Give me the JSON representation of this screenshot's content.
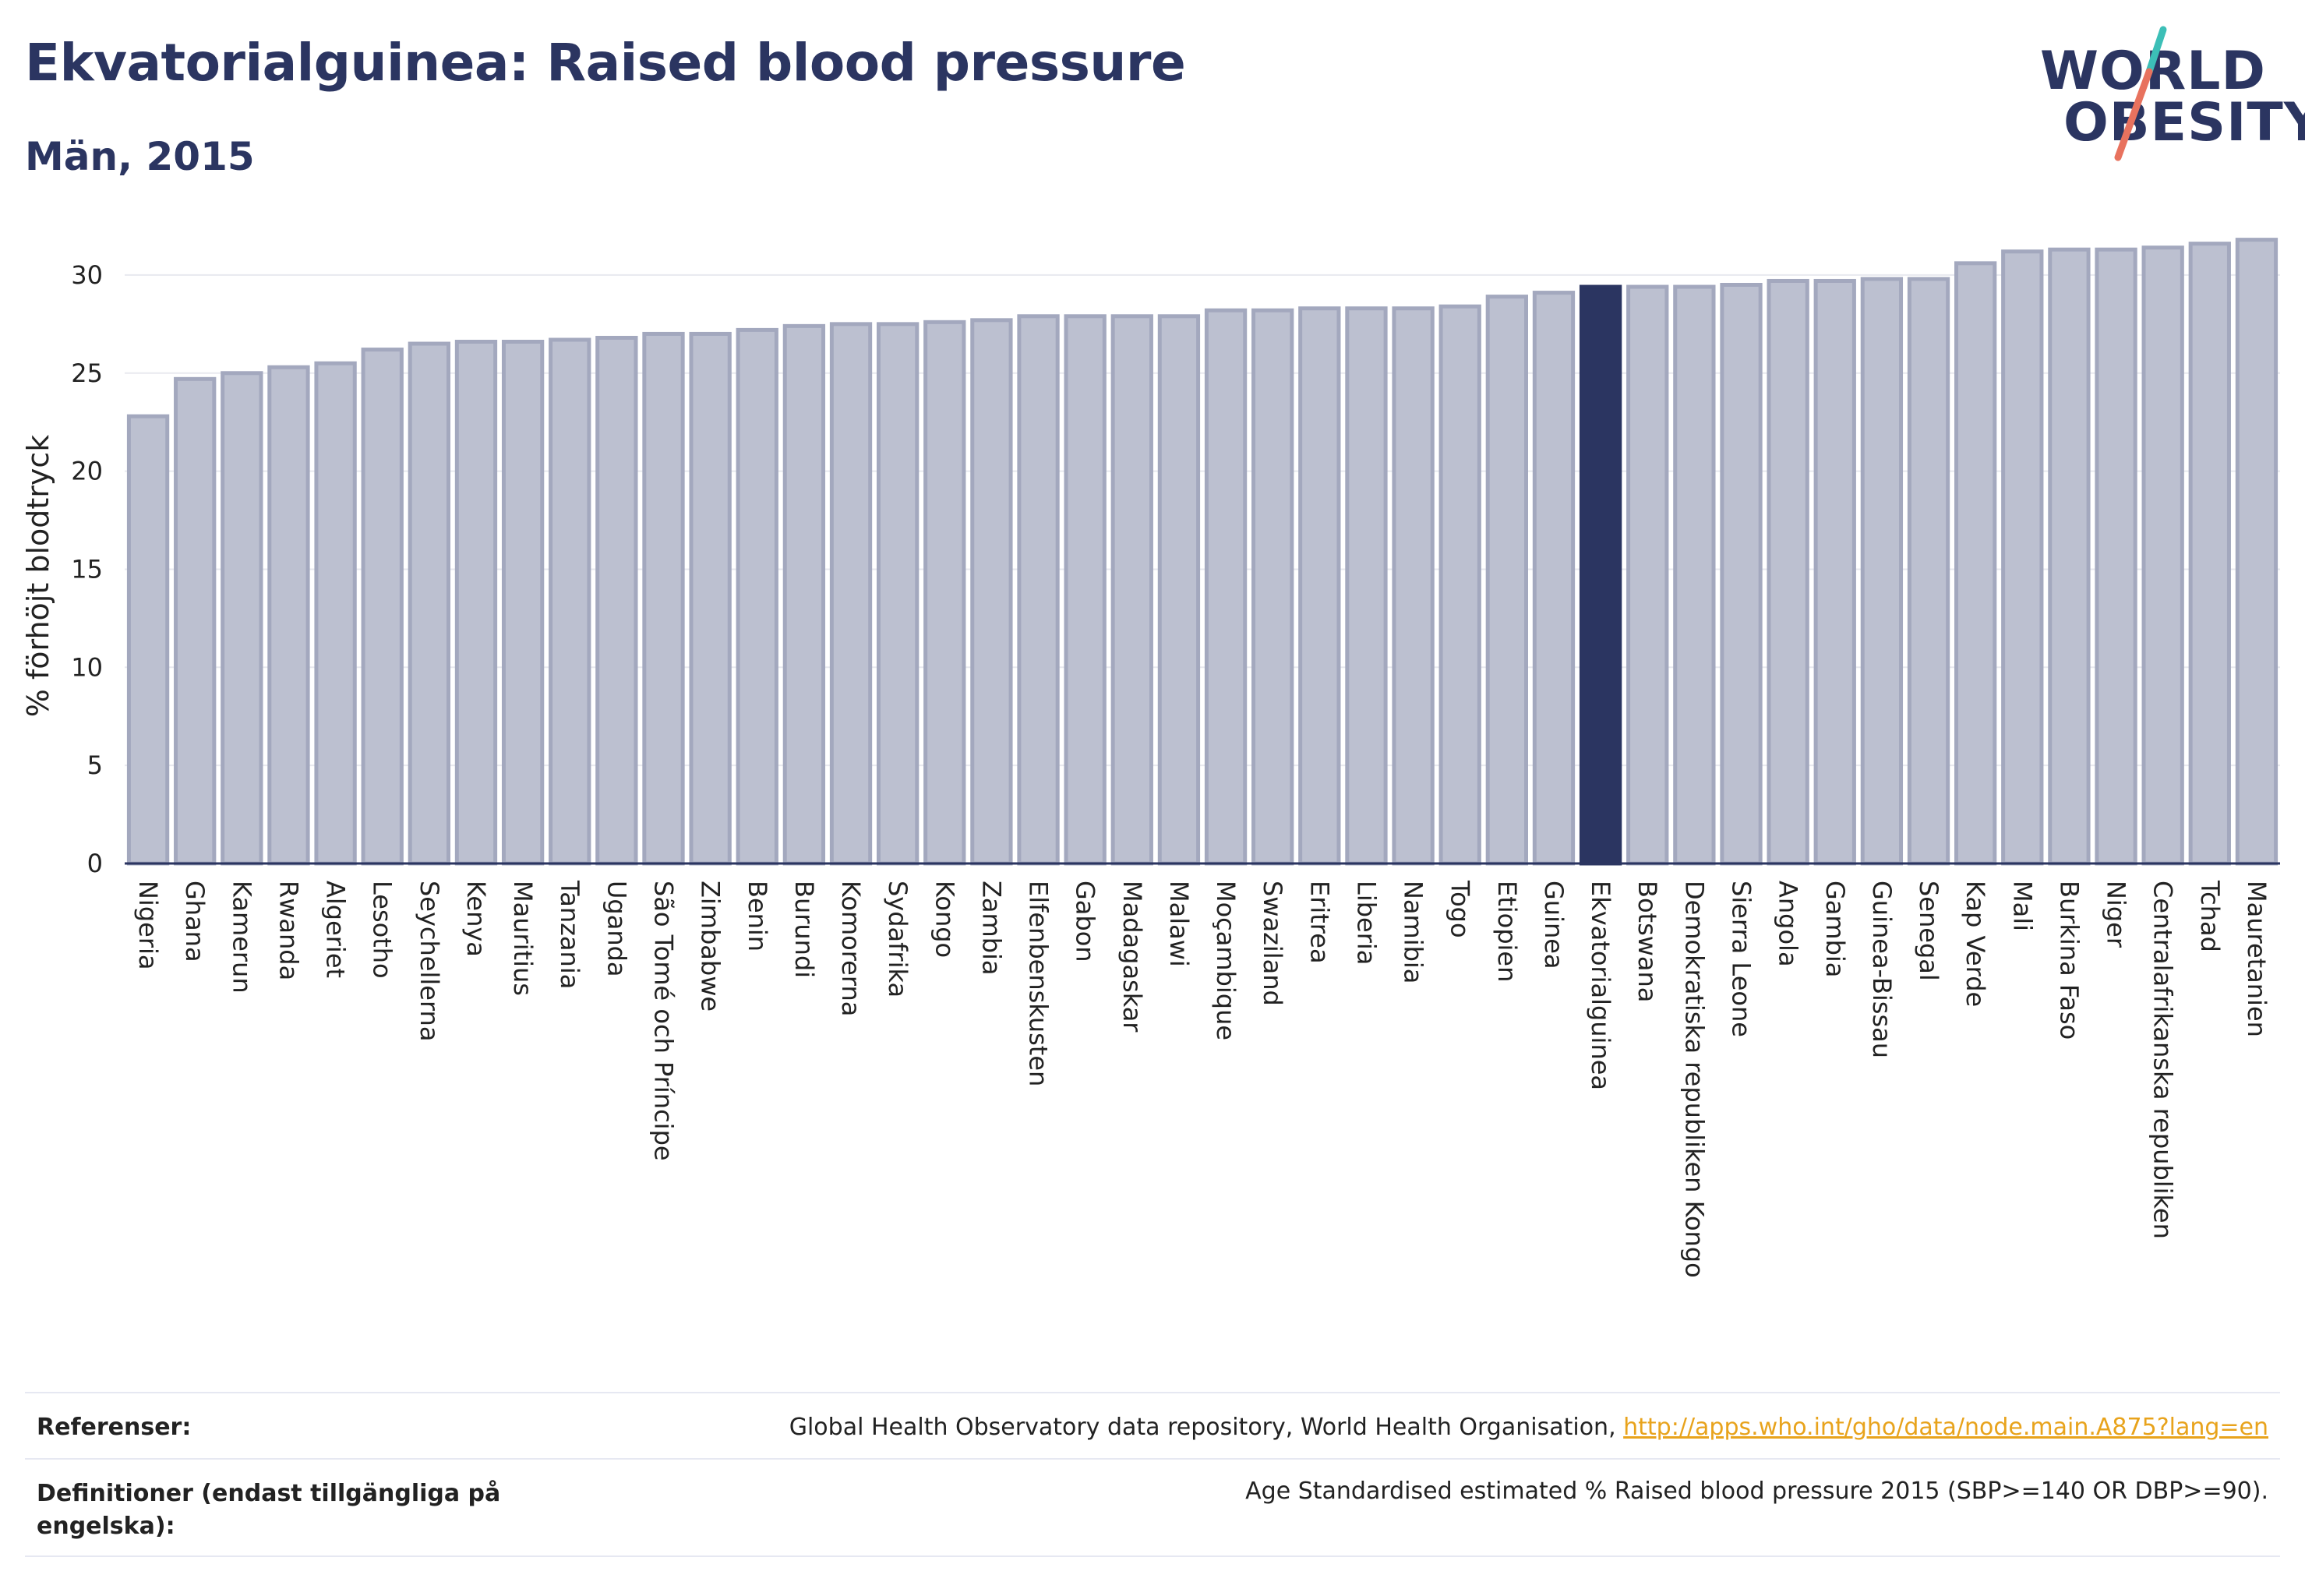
{
  "header": {
    "title": "Ekvatorialguinea: Raised blood pressure",
    "subtitle": "Män, 2015"
  },
  "logo": {
    "line1": "WORLD",
    "line2": "OBESITY"
  },
  "colors": {
    "bar": "#bcc0d0",
    "bar_border": "#a3a8be",
    "highlight": "#2b3561",
    "grid": "#e8e9ef",
    "axis": "#2b3561"
  },
  "chart_data": {
    "type": "bar",
    "ylabel": "% förhöjt blodtryck",
    "xlabel": "",
    "ylim": [
      0,
      32.5
    ],
    "yticks": [
      0,
      5,
      10,
      15,
      20,
      25,
      30
    ],
    "grid": true,
    "highlight": "Ekvatorialguinea",
    "categories": [
      "Nigeria",
      "Ghana",
      "Kamerun",
      "Rwanda",
      "Algeriet",
      "Lesotho",
      "Seychellerna",
      "Kenya",
      "Mauritius",
      "Tanzania",
      "Uganda",
      "São Tomé och Príncipe",
      "Zimbabwe",
      "Benin",
      "Burundi",
      "Komorerna",
      "Sydafrika",
      "Kongo",
      "Zambia",
      "Elfenbenskusten",
      "Gabon",
      "Madagaskar",
      "Malawi",
      "Moçambique",
      "Swaziland",
      "Eritrea",
      "Liberia",
      "Namibia",
      "Togo",
      "Etiopien",
      "Guinea",
      "Ekvatorialguinea",
      "Botswana",
      "Demokratiska republiken Kongo",
      "Sierra Leone",
      "Angola",
      "Gambia",
      "Guinea-Bissau",
      "Senegal",
      "Kap Verde",
      "Mali",
      "Burkina Faso",
      "Niger",
      "Centralafrikanska republiken",
      "Tchad",
      "Mauretanien"
    ],
    "values": [
      22.8,
      24.7,
      25.0,
      25.3,
      25.5,
      26.2,
      26.5,
      26.6,
      26.6,
      26.7,
      26.8,
      27.0,
      27.0,
      27.2,
      27.4,
      27.5,
      27.5,
      27.6,
      27.7,
      27.9,
      27.9,
      27.9,
      27.9,
      28.2,
      28.2,
      28.3,
      28.3,
      28.3,
      28.4,
      28.9,
      29.1,
      29.4,
      29.4,
      29.4,
      29.5,
      29.7,
      29.7,
      29.8,
      29.8,
      30.6,
      31.2,
      31.3,
      31.3,
      31.4,
      31.6,
      31.8
    ]
  },
  "footer": {
    "references_label": "Referenser:",
    "references_text": "Global Health Observatory data repository, World Health Organisation, ",
    "references_link": "http://apps.who.int/gho/data/node.main.A875?lang=en",
    "definitions_label": "Definitioner (endast tillgängliga på engelska):",
    "definitions_text": "Age Standardised estimated % Raised blood pressure 2015 (SBP>=140 OR DBP>=90)."
  }
}
